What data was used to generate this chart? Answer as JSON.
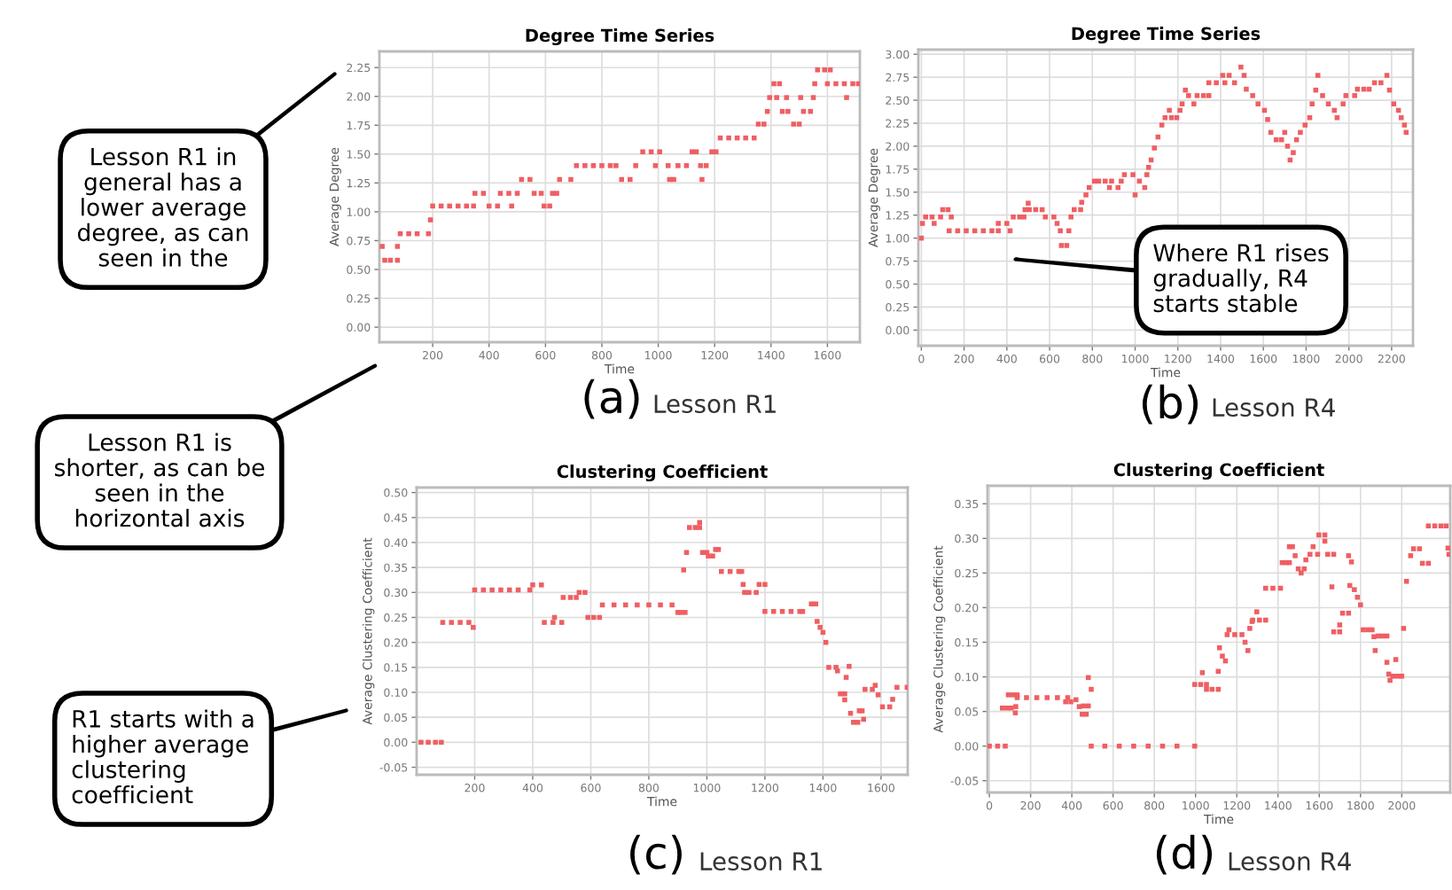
{
  "chart_data": [
    {
      "type": "scatter",
      "title": "Degree Time Series",
      "xlabel": "Time",
      "ylabel": "Average Degree",
      "marker": "square",
      "grid": true,
      "xlim": [
        11,
        1715
      ],
      "ylim": [
        -0.13,
        2.39
      ],
      "xticks": [
        200,
        400,
        600,
        800,
        1000,
        1200,
        1400,
        1600
      ],
      "yticks": [
        {
          "value": 0,
          "label": "0.00"
        },
        {
          "value": 0.25,
          "label": "0.25"
        },
        {
          "value": 0.5,
          "label": "0.50"
        },
        {
          "value": 0.75,
          "label": "0.75"
        },
        {
          "value": 1,
          "label": "1.00"
        },
        {
          "value": 1.25,
          "label": "1.25"
        },
        {
          "value": 1.5,
          "label": "1.50"
        },
        {
          "value": 1.75,
          "label": "1.75"
        },
        {
          "value": 2,
          "label": "2.00"
        },
        {
          "value": 2.25,
          "label": "2.25"
        }
      ],
      "x": [
        21,
        30,
        50,
        75,
        75,
        85,
        115,
        145,
        185,
        192,
        200,
        230,
        260,
        290,
        320,
        345,
        350,
        380,
        400,
        430,
        440,
        470,
        480,
        500,
        515,
        545,
        560,
        585,
        595,
        615,
        625,
        640,
        650,
        690,
        710,
        740,
        770,
        800,
        830,
        850,
        870,
        900,
        920,
        945,
        975,
        1005,
        990,
        1035,
        1040,
        1055,
        1070,
        1100,
        1120,
        1135,
        1150,
        1155,
        1170,
        1190,
        1205,
        1220,
        1250,
        1280,
        1310,
        1340,
        1355,
        1375,
        1387,
        1395,
        1410,
        1420,
        1430,
        1440,
        1460,
        1455,
        1480,
        1500,
        1505,
        1515,
        1540,
        1550,
        1555,
        1565,
        1590,
        1610,
        1600,
        1630,
        1660,
        1668,
        1690,
        1710
      ],
      "series": [
        {
          "color": "#ee5f63",
          "values": [
            0.7,
            0.58,
            0.58,
            0.58,
            0.7,
            0.81,
            0.81,
            0.81,
            0.81,
            0.93,
            1.05,
            1.05,
            1.05,
            1.05,
            1.05,
            1.05,
            1.16,
            1.16,
            1.05,
            1.05,
            1.16,
            1.16,
            1.05,
            1.16,
            1.28,
            1.28,
            1.16,
            1.16,
            1.05,
            1.05,
            1.16,
            1.16,
            1.28,
            1.28,
            1.4,
            1.4,
            1.4,
            1.4,
            1.4,
            1.4,
            1.28,
            1.28,
            1.4,
            1.52,
            1.52,
            1.52,
            1.4,
            1.4,
            1.28,
            1.28,
            1.4,
            1.4,
            1.52,
            1.52,
            1.4,
            1.28,
            1.4,
            1.52,
            1.52,
            1.64,
            1.64,
            1.64,
            1.64,
            1.64,
            1.76,
            1.76,
            1.87,
            1.99,
            2.11,
            1.99,
            2.11,
            1.87,
            1.87,
            1.99,
            1.76,
            1.76,
            1.99,
            1.87,
            1.87,
            1.99,
            2.11,
            2.23,
            2.23,
            2.23,
            2.11,
            2.11,
            2.11,
            1.99,
            2.11,
            2.11
          ]
        }
      ],
      "annotations": [
        "(a)",
        "Lesson R1",
        "Lesson R1 in\ngeneral has a\nlower average\ndegree, as can\nseen in the",
        "Lesson R1 is\nshorter, as can be\nseen in the\nhorizontal axis"
      ]
    },
    {
      "type": "scatter",
      "title": "Degree Time Series",
      "xlabel": "Time",
      "ylabel": "Average Degree",
      "marker": "square",
      "grid": true,
      "xlim": [
        -14,
        2300
      ],
      "ylim": [
        -0.17,
        3.05
      ],
      "xticks": [
        0,
        200,
        400,
        600,
        800,
        1000,
        1200,
        1400,
        1600,
        1800,
        2000,
        2200
      ],
      "yticks": [
        {
          "value": 0,
          "label": "0.00"
        },
        {
          "value": 0.25,
          "label": "0.25"
        },
        {
          "value": 0.5,
          "label": "0.50"
        },
        {
          "value": 0.75,
          "label": "0.75"
        },
        {
          "value": 1,
          "label": "1.00"
        },
        {
          "value": 1.25,
          "label": "1.25"
        },
        {
          "value": 1.5,
          "label": "1.50"
        },
        {
          "value": 1.75,
          "label": "1.75"
        },
        {
          "value": 2,
          "label": "2.00"
        },
        {
          "value": 2.25,
          "label": "2.25"
        },
        {
          "value": 2.5,
          "label": "2.50"
        },
        {
          "value": 2.75,
          "label": "2.75"
        },
        {
          "value": 3,
          "label": "3.00"
        }
      ],
      "x": [
        0,
        5,
        20,
        50,
        60,
        90,
        100,
        125,
        140,
        130,
        170,
        210,
        250,
        290,
        330,
        360,
        360,
        400,
        415,
        430,
        460,
        480,
        485,
        500,
        505,
        535,
        565,
        580,
        620,
        635,
        650,
        655,
        680,
        690,
        700,
        715,
        745,
        750,
        770,
        785,
        810,
        830,
        860,
        890,
        880,
        920,
        935,
        950,
        990,
        1000,
        1020,
        1045,
        1055,
        1063,
        1075,
        1090,
        1107,
        1125,
        1140,
        1170,
        1195,
        1160,
        1210,
        1220,
        1235,
        1250,
        1290,
        1320,
        1345,
        1275,
        1345,
        1380,
        1420,
        1465,
        1410,
        1440,
        1495,
        1510,
        1520,
        1550,
        1575,
        1605,
        1620,
        1635,
        1660,
        1685,
        1700,
        1713,
        1725,
        1740,
        1755,
        1773,
        1795,
        1817,
        1828,
        1845,
        1855,
        1877,
        1904,
        1932,
        1945,
        1973,
        1986,
        2027,
        2040,
        2070,
        2095,
        2120,
        2150,
        2178,
        2190,
        2210,
        2232,
        2245,
        2260,
        2268
      ],
      "series": [
        {
          "color": "#ee5f63",
          "values": [
            1.0,
            1.16,
            1.23,
            1.23,
            1.16,
            1.23,
            1.31,
            1.31,
            1.23,
            1.08,
            1.08,
            1.08,
            1.08,
            1.08,
            1.08,
            1.08,
            1.16,
            1.16,
            1.08,
            1.23,
            1.23,
            1.23,
            1.31,
            1.38,
            1.31,
            1.31,
            1.31,
            1.23,
            1.23,
            1.16,
            1.08,
            0.92,
            0.92,
            1.08,
            1.23,
            1.31,
            1.31,
            1.39,
            1.47,
            1.55,
            1.62,
            1.62,
            1.62,
            1.62,
            1.55,
            1.55,
            1.62,
            1.69,
            1.69,
            1.47,
            1.62,
            1.55,
            1.69,
            1.77,
            1.85,
            1.98,
            2.1,
            2.23,
            2.31,
            2.31,
            2.31,
            2.39,
            2.39,
            2.46,
            2.61,
            2.55,
            2.55,
            2.55,
            2.55,
            2.46,
            2.69,
            2.69,
            2.69,
            2.69,
            2.77,
            2.77,
            2.86,
            2.77,
            2.62,
            2.55,
            2.46,
            2.39,
            2.29,
            2.15,
            2.07,
            2.07,
            2.15,
            2.0,
            1.85,
            1.93,
            2.07,
            2.15,
            2.23,
            2.31,
            2.46,
            2.61,
            2.77,
            2.55,
            2.46,
            2.39,
            2.31,
            2.46,
            2.55,
            2.55,
            2.62,
            2.62,
            2.62,
            2.69,
            2.69,
            2.77,
            2.61,
            2.46,
            2.39,
            2.31,
            2.23,
            2.15
          ]
        }
      ],
      "annotations": [
        "(b)",
        "Lesson R4",
        "Where R1 rises\ngradually, R4\nstarts stable"
      ]
    },
    {
      "type": "scatter",
      "title": "Clustering Coefficient",
      "xlabel": "Time",
      "ylabel": "Average Clustering Coefficient",
      "marker": "square",
      "grid": true,
      "xlim": [
        0,
        1692
      ],
      "ylim": [
        -0.065,
        0.51
      ],
      "xticks": [
        200,
        400,
        600,
        800,
        1000,
        1200,
        1400,
        1600
      ],
      "yticks": [
        {
          "value": -0.05,
          "label": "-0.05"
        },
        {
          "value": 0,
          "label": "0.00"
        },
        {
          "value": 0.05,
          "label": "0.05"
        },
        {
          "value": 0.1,
          "label": "0.10"
        },
        {
          "value": 0.15,
          "label": "0.15"
        },
        {
          "value": 0.2,
          "label": "0.20"
        },
        {
          "value": 0.25,
          "label": "0.25"
        },
        {
          "value": 0.3,
          "label": "0.30"
        },
        {
          "value": 0.35,
          "label": "0.35"
        },
        {
          "value": 0.4,
          "label": "0.40"
        },
        {
          "value": 0.45,
          "label": "0.45"
        },
        {
          "value": 0.5,
          "label": "0.50"
        }
      ],
      "x": [
        15,
        40,
        65,
        85,
        90,
        120,
        150,
        180,
        195,
        200,
        230,
        260,
        290,
        320,
        350,
        390,
        400,
        430,
        440,
        470,
        475,
        500,
        505,
        530,
        550,
        560,
        580,
        590,
        610,
        630,
        640,
        680,
        720,
        760,
        800,
        840,
        880,
        900,
        910,
        925,
        920,
        930,
        940,
        960,
        975,
        975,
        985,
        1000,
        1005,
        1020,
        1030,
        1040,
        1050,
        1080,
        1110,
        1120,
        1125,
        1130,
        1145,
        1170,
        1180,
        1200,
        1200,
        1230,
        1260,
        1290,
        1320,
        1330,
        1360,
        1375,
        1380,
        1390,
        1400,
        1410,
        1420,
        1445,
        1450,
        1460,
        1475,
        1475,
        1480,
        1490,
        1495,
        1505,
        1520,
        1525,
        1535,
        1540,
        1545,
        1570,
        1580,
        1590,
        1605,
        1630,
        1640,
        1655,
        1690
      ],
      "series": [
        {
          "color": "#ee5f63",
          "values": [
            0.0,
            0.0,
            0.0,
            0.0,
            0.24,
            0.24,
            0.24,
            0.24,
            0.23,
            0.305,
            0.305,
            0.305,
            0.305,
            0.305,
            0.305,
            0.305,
            0.315,
            0.315,
            0.24,
            0.24,
            0.25,
            0.24,
            0.29,
            0.29,
            0.29,
            0.3,
            0.3,
            0.25,
            0.25,
            0.25,
            0.275,
            0.275,
            0.275,
            0.275,
            0.275,
            0.275,
            0.275,
            0.26,
            0.26,
            0.26,
            0.345,
            0.38,
            0.43,
            0.43,
            0.43,
            0.44,
            0.38,
            0.38,
            0.373,
            0.373,
            0.386,
            0.386,
            0.342,
            0.342,
            0.342,
            0.342,
            0.316,
            0.3,
            0.3,
            0.3,
            0.316,
            0.316,
            0.262,
            0.262,
            0.262,
            0.262,
            0.262,
            0.262,
            0.277,
            0.277,
            0.242,
            0.23,
            0.22,
            0.2,
            0.15,
            0.15,
            0.143,
            0.097,
            0.097,
            0.085,
            0.13,
            0.152,
            0.058,
            0.04,
            0.04,
            0.063,
            0.063,
            0.046,
            0.106,
            0.106,
            0.114,
            0.095,
            0.071,
            0.071,
            0.086,
            0.11,
            0.11
          ]
        }
      ],
      "annotations": [
        "(c)",
        "Lesson R1",
        "R1 starts with a\nhigher average\nclustering\ncoefficient"
      ]
    },
    {
      "type": "scatter",
      "title": "Clustering Coefficient",
      "xlabel": "Time",
      "ylabel": "Average Clustering Coefficient",
      "marker": "square",
      "grid": true,
      "xlim": [
        -9,
        2235
      ],
      "ylim": [
        -0.067,
        0.376
      ],
      "xticks": [
        0,
        200,
        400,
        600,
        800,
        1000,
        1200,
        1400,
        1600,
        1800,
        2000
      ],
      "yticks": [
        {
          "value": -0.05,
          "label": "-0.05"
        },
        {
          "value": 0,
          "label": "0.00"
        },
        {
          "value": 0.05,
          "label": "0.05"
        },
        {
          "value": 0.1,
          "label": "0.10"
        },
        {
          "value": 0.15,
          "label": "0.15"
        },
        {
          "value": 0.2,
          "label": "0.20"
        },
        {
          "value": 0.25,
          "label": "0.25"
        },
        {
          "value": 0.3,
          "label": "0.30"
        },
        {
          "value": 0.35,
          "label": "0.35"
        }
      ],
      "x": [
        0,
        40,
        77,
        63,
        85,
        106,
        92,
        115,
        135,
        126,
        128,
        135,
        180,
        230,
        280,
        330,
        380,
        370,
        395,
        420,
        436,
        450,
        456,
        470,
        480,
        480,
        494,
        494,
        560,
        630,
        700,
        770,
        840,
        910,
        996,
        996,
        1025,
        1053,
        1033,
        1053,
        1080,
        1110,
        1110,
        1116,
        1130,
        1145,
        1153,
        1162,
        1190,
        1225,
        1240,
        1254,
        1263,
        1274,
        1277,
        1297,
        1310,
        1340,
        1340,
        1375,
        1412,
        1420,
        1440,
        1455,
        1455,
        1470,
        1483,
        1498,
        1512,
        1527,
        1535,
        1555,
        1570,
        1592,
        1598,
        1627,
        1627,
        1641,
        1661,
        1670,
        1670,
        1699,
        1699,
        1713,
        1742,
        1742,
        1748,
        1756,
        1770,
        1785,
        1800,
        1813,
        1835,
        1856,
        1865,
        1871,
        1885,
        1905,
        1928,
        1928,
        1937,
        1943,
        1957,
        1971,
        1980,
        2000,
        2009,
        2023,
        2043,
        2057,
        2086,
        2100,
        2129,
        2129,
        2160,
        2190,
        2215,
        2224,
        2229
      ],
      "series": [
        {
          "color": "#ee5f63",
          "values": [
            0.0,
            0.0,
            0.0,
            0.055,
            0.055,
            0.055,
            0.074,
            0.074,
            0.074,
            0.048,
            0.057,
            0.07,
            0.07,
            0.07,
            0.07,
            0.07,
            0.07,
            0.064,
            0.064,
            0.067,
            0.057,
            0.046,
            0.058,
            0.046,
            0.058,
            0.099,
            0.082,
            0.0,
            0.0,
            0.0,
            0.0,
            0.0,
            0.0,
            0.0,
            0.0,
            0.089,
            0.089,
            0.089,
            0.106,
            0.082,
            0.082,
            0.082,
            0.108,
            0.142,
            0.13,
            0.123,
            0.161,
            0.168,
            0.161,
            0.161,
            0.15,
            0.138,
            0.17,
            0.18,
            0.182,
            0.194,
            0.182,
            0.182,
            0.228,
            0.228,
            0.228,
            0.265,
            0.265,
            0.265,
            0.288,
            0.288,
            0.275,
            0.256,
            0.25,
            0.256,
            0.269,
            0.277,
            0.288,
            0.277,
            0.305,
            0.305,
            0.296,
            0.277,
            0.23,
            0.277,
            0.165,
            0.165,
            0.175,
            0.192,
            0.192,
            0.275,
            0.232,
            0.266,
            0.226,
            0.215,
            0.204,
            0.168,
            0.168,
            0.168,
            0.158,
            0.138,
            0.159,
            0.159,
            0.159,
            0.121,
            0.104,
            0.095,
            0.101,
            0.125,
            0.101,
            0.101,
            0.17,
            0.238,
            0.275,
            0.285,
            0.285,
            0.264,
            0.264,
            0.318,
            0.318,
            0.318,
            0.318,
            0.286,
            0.277
          ]
        }
      ],
      "annotations": [
        "(d)",
        "Lesson R4"
      ]
    }
  ]
}
